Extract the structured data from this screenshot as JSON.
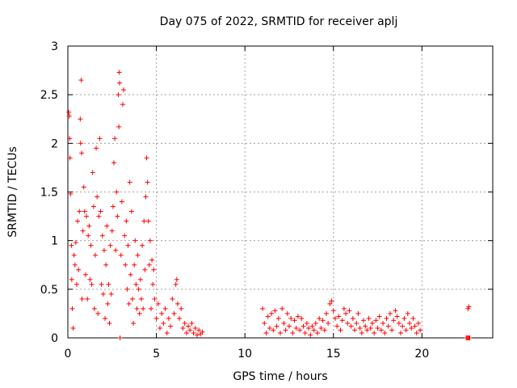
{
  "chart_data": {
    "type": "scatter",
    "title": "Day 075 of 2022, SRMTID for receiver aplj",
    "xlabel": "GPS time / hours",
    "ylabel": "SRMTID / TECUs",
    "xlim": [
      0,
      24
    ],
    "ylim": [
      0,
      3
    ],
    "xticks": [
      0,
      5,
      10,
      15,
      20
    ],
    "xtick_labels": [
      "0",
      "5",
      "10",
      "15",
      "20"
    ],
    "yticks": [
      0,
      0.5,
      1,
      1.5,
      2,
      2.5,
      3
    ],
    "ytick_labels": [
      "0",
      "0.5",
      "1",
      "1.5",
      "2",
      "2.5",
      "3"
    ],
    "grid": true,
    "marker": "plus",
    "series_color": "#ff0000",
    "series": [
      {
        "name": "SRMTID",
        "points": [
          [
            0.05,
            2.32
          ],
          [
            0.08,
            2.28
          ],
          [
            0.1,
            2.05
          ],
          [
            0.12,
            1.85
          ],
          [
            0.15,
            1.48
          ],
          [
            0.2,
            0.95
          ],
          [
            0.22,
            0.6
          ],
          [
            0.25,
            0.3
          ],
          [
            0.3,
            0.1
          ],
          [
            0.35,
            0.85
          ],
          [
            0.4,
            0.75
          ],
          [
            0.45,
            0.98
          ],
          [
            0.5,
            0.55
          ],
          [
            0.55,
            1.2
          ],
          [
            0.6,
            0.7
          ],
          [
            0.65,
            1.3
          ],
          [
            0.7,
            2.25
          ],
          [
            0.72,
            2.0
          ],
          [
            0.75,
            2.65
          ],
          [
            0.78,
            1.9
          ],
          [
            0.8,
            0.4
          ],
          [
            0.85,
            1.1
          ],
          [
            0.9,
            1.55
          ],
          [
            0.95,
            1.3
          ],
          [
            1.0,
            0.65
          ],
          [
            1.05,
            1.25
          ],
          [
            1.1,
            0.4
          ],
          [
            1.15,
            1.05
          ],
          [
            1.2,
            1.15
          ],
          [
            1.25,
            0.6
          ],
          [
            1.3,
            0.95
          ],
          [
            1.35,
            0.55
          ],
          [
            1.4,
            1.7
          ],
          [
            1.45,
            1.35
          ],
          [
            1.5,
            0.3
          ],
          [
            1.55,
            0.85
          ],
          [
            1.6,
            1.95
          ],
          [
            1.65,
            1.45
          ],
          [
            1.7,
            0.25
          ],
          [
            1.75,
            1.25
          ],
          [
            1.8,
            2.05
          ],
          [
            1.85,
            1.3
          ],
          [
            1.9,
            0.55
          ],
          [
            1.95,
            1.05
          ],
          [
            2.0,
            0.45
          ],
          [
            2.05,
            0.9
          ],
          [
            2.1,
            0.2
          ],
          [
            2.15,
            0.75
          ],
          [
            2.2,
            1.15
          ],
          [
            2.25,
            0.35
          ],
          [
            2.3,
            0.55
          ],
          [
            2.35,
            0.15
          ],
          [
            2.4,
            0.95
          ],
          [
            2.45,
            0.45
          ],
          [
            2.5,
            1.1
          ],
          [
            2.55,
            1.35
          ],
          [
            2.6,
            1.8
          ],
          [
            2.65,
            2.05
          ],
          [
            2.7,
            0.9
          ],
          [
            2.75,
            1.5
          ],
          [
            2.8,
            1.25
          ],
          [
            2.85,
            2.5
          ],
          [
            2.88,
            2.17
          ],
          [
            2.9,
            2.73
          ],
          [
            2.92,
            2.62
          ],
          [
            2.95,
            0.0
          ],
          [
            3.0,
            0.85
          ],
          [
            3.05,
            1.4
          ],
          [
            3.1,
            2.4
          ],
          [
            3.15,
            2.55
          ],
          [
            3.2,
            1.05
          ],
          [
            3.25,
            0.75
          ],
          [
            3.3,
            1.2
          ],
          [
            3.35,
            0.5
          ],
          [
            3.4,
            0.95
          ],
          [
            3.45,
            0.35
          ],
          [
            3.5,
            1.6
          ],
          [
            3.55,
            0.65
          ],
          [
            3.6,
            1.3
          ],
          [
            3.65,
            0.4
          ],
          [
            3.7,
            0.15
          ],
          [
            3.75,
            0.75
          ],
          [
            3.8,
            1.0
          ],
          [
            3.85,
            0.55
          ],
          [
            3.9,
            0.3
          ],
          [
            3.95,
            0.85
          ],
          [
            4.0,
            0.5
          ],
          [
            4.05,
            0.25
          ],
          [
            4.1,
            0.6
          ],
          [
            4.15,
            0.4
          ],
          [
            4.2,
            0.95
          ],
          [
            4.25,
            0.3
          ],
          [
            4.3,
            1.2
          ],
          [
            4.35,
            0.7
          ],
          [
            4.4,
            1.45
          ],
          [
            4.45,
            1.85
          ],
          [
            4.5,
            1.6
          ],
          [
            4.55,
            1.2
          ],
          [
            4.6,
            0.75
          ],
          [
            4.65,
            1.0
          ],
          [
            4.7,
            0.3
          ],
          [
            4.75,
            0.8
          ],
          [
            4.8,
            0.55
          ],
          [
            4.85,
            0.7
          ],
          [
            4.9,
            0.4
          ],
          [
            5.0,
            0.2
          ],
          [
            5.1,
            0.35
          ],
          [
            5.2,
            0.1
          ],
          [
            5.3,
            0.25
          ],
          [
            5.4,
            0.15
          ],
          [
            5.5,
            0.3
          ],
          [
            5.6,
            0.05
          ],
          [
            5.7,
            0.2
          ],
          [
            5.8,
            0.12
          ],
          [
            5.9,
            0.4
          ],
          [
            6.0,
            0.25
          ],
          [
            6.1,
            0.55
          ],
          [
            6.15,
            0.6
          ],
          [
            6.2,
            0.35
          ],
          [
            6.3,
            0.2
          ],
          [
            6.4,
            0.3
          ],
          [
            6.5,
            0.1
          ],
          [
            6.6,
            0.15
          ],
          [
            6.7,
            0.05
          ],
          [
            6.8,
            0.12
          ],
          [
            6.9,
            0.08
          ],
          [
            7.0,
            0.15
          ],
          [
            7.1,
            0.05
          ],
          [
            7.2,
            0.1
          ],
          [
            7.3,
            0.03
          ],
          [
            7.4,
            0.08
          ],
          [
            7.5,
            0.04
          ],
          [
            7.6,
            0.06
          ],
          [
            11.0,
            0.3
          ],
          [
            11.1,
            0.15
          ],
          [
            11.2,
            0.05
          ],
          [
            11.3,
            0.22
          ],
          [
            11.4,
            0.1
          ],
          [
            11.5,
            0.25
          ],
          [
            11.6,
            0.08
          ],
          [
            11.7,
            0.28
          ],
          [
            11.8,
            0.12
          ],
          [
            11.9,
            0.2
          ],
          [
            12.0,
            0.05
          ],
          [
            12.1,
            0.3
          ],
          [
            12.2,
            0.15
          ],
          [
            12.3,
            0.08
          ],
          [
            12.4,
            0.25
          ],
          [
            12.5,
            0.12
          ],
          [
            12.6,
            0.2
          ],
          [
            12.7,
            0.05
          ],
          [
            12.8,
            0.18
          ],
          [
            12.9,
            0.1
          ],
          [
            13.0,
            0.22
          ],
          [
            13.1,
            0.08
          ],
          [
            13.2,
            0.2
          ],
          [
            13.3,
            0.12
          ],
          [
            13.4,
            0.05
          ],
          [
            13.5,
            0.15
          ],
          [
            13.6,
            0.1
          ],
          [
            13.7,
            0.03
          ],
          [
            13.8,
            0.12
          ],
          [
            13.9,
            0.08
          ],
          [
            14.0,
            0.15
          ],
          [
            14.1,
            0.05
          ],
          [
            14.2,
            0.2
          ],
          [
            14.3,
            0.1
          ],
          [
            14.4,
            0.18
          ],
          [
            14.5,
            0.08
          ],
          [
            14.6,
            0.25
          ],
          [
            14.7,
            0.15
          ],
          [
            14.8,
            0.35
          ],
          [
            14.9,
            0.38
          ],
          [
            15.0,
            0.28
          ],
          [
            15.1,
            0.2
          ],
          [
            15.2,
            0.12
          ],
          [
            15.3,
            0.22
          ],
          [
            15.4,
            0.08
          ],
          [
            15.5,
            0.18
          ],
          [
            15.6,
            0.3
          ],
          [
            15.7,
            0.25
          ],
          [
            15.8,
            0.15
          ],
          [
            15.9,
            0.28
          ],
          [
            16.0,
            0.12
          ],
          [
            16.1,
            0.2
          ],
          [
            16.2,
            0.08
          ],
          [
            16.3,
            0.15
          ],
          [
            16.4,
            0.25
          ],
          [
            16.5,
            0.1
          ],
          [
            16.6,
            0.05
          ],
          [
            16.7,
            0.18
          ],
          [
            16.8,
            0.12
          ],
          [
            16.9,
            0.08
          ],
          [
            17.0,
            0.2
          ],
          [
            17.1,
            0.1
          ],
          [
            17.2,
            0.15
          ],
          [
            17.3,
            0.05
          ],
          [
            17.4,
            0.18
          ],
          [
            17.5,
            0.1
          ],
          [
            17.6,
            0.22
          ],
          [
            17.7,
            0.08
          ],
          [
            17.8,
            0.15
          ],
          [
            17.9,
            0.05
          ],
          [
            18.0,
            0.2
          ],
          [
            18.1,
            0.12
          ],
          [
            18.2,
            0.25
          ],
          [
            18.3,
            0.08
          ],
          [
            18.4,
            0.18
          ],
          [
            18.5,
            0.28
          ],
          [
            18.6,
            0.22
          ],
          [
            18.7,
            0.15
          ],
          [
            18.8,
            0.05
          ],
          [
            18.9,
            0.12
          ],
          [
            19.0,
            0.2
          ],
          [
            19.1,
            0.08
          ],
          [
            19.2,
            0.25
          ],
          [
            19.3,
            0.15
          ],
          [
            19.4,
            0.1
          ],
          [
            19.5,
            0.2
          ],
          [
            19.6,
            0.12
          ],
          [
            19.7,
            0.05
          ],
          [
            19.8,
            0.15
          ],
          [
            19.9,
            0.08
          ],
          [
            22.6,
            0.3
          ],
          [
            22.65,
            0.32
          ],
          [
            22.5,
            0.0
          ],
          [
            22.55,
            0.0
          ],
          [
            22.6,
            0.0
          ],
          [
            22.65,
            0.0
          ],
          [
            22.7,
            0.0
          ]
        ]
      }
    ]
  }
}
